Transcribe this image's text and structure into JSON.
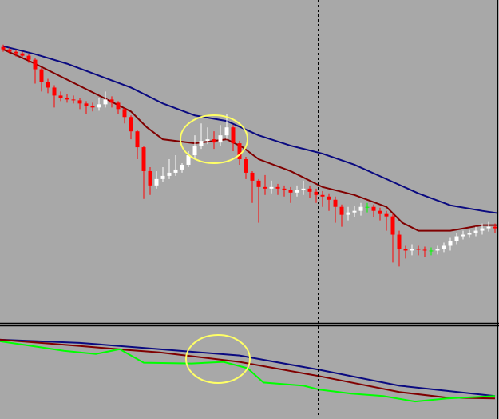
{
  "chart_data": [
    {
      "type": "candlestick",
      "xlim": [
        -0.5,
        77.5
      ],
      "ylim": [
        0,
        405
      ],
      "up_color": "#ffffff",
      "down_color": "#ff0000",
      "flat_color": "#00ff00",
      "x": [
        0,
        1,
        2,
        3,
        4,
        5,
        6,
        7,
        8,
        9,
        10,
        11,
        12,
        13,
        14,
        15,
        16,
        17,
        18,
        19,
        20,
        21,
        22,
        23,
        24,
        25,
        26,
        27,
        28,
        29,
        30,
        31,
        32,
        33,
        34,
        35,
        36,
        37,
        38,
        39,
        40,
        41,
        42,
        43,
        44,
        45,
        46,
        47,
        48,
        49,
        50,
        51,
        52,
        53,
        54,
        55,
        56,
        57,
        58,
        59,
        60,
        61,
        62,
        63,
        64,
        65,
        66,
        67,
        68,
        69,
        70,
        71,
        72,
        73,
        74,
        75,
        76,
        77
      ],
      "open": [
        346,
        343,
        340,
        338,
        335,
        330,
        318,
        302,
        295,
        285,
        282,
        280,
        279,
        275,
        272,
        270,
        274,
        280,
        276,
        268,
        258,
        240,
        220,
        190,
        172,
        180,
        184,
        188,
        192,
        198,
        210,
        222,
        228,
        230,
        226,
        235,
        245,
        225,
        205,
        188,
        178,
        170,
        168,
        170,
        168,
        166,
        163,
        166,
        168,
        164,
        160,
        158,
        154,
        145,
        135,
        138,
        140,
        145,
        145,
        140,
        136,
        133,
        110,
        92,
        90,
        92,
        91,
        90,
        90,
        92,
        96,
        102,
        108,
        110,
        112,
        115,
        118,
        120
      ],
      "high": [
        349,
        345,
        342,
        340,
        337,
        332,
        320,
        306,
        298,
        290,
        287,
        285,
        282,
        278,
        276,
        282,
        290,
        284,
        278,
        270,
        260,
        242,
        222,
        195,
        190,
        195,
        205,
        210,
        200,
        215,
        235,
        250,
        245,
        240,
        248,
        262,
        248,
        228,
        208,
        190,
        180,
        185,
        178,
        174,
        172,
        170,
        172,
        178,
        172,
        168,
        165,
        162,
        158,
        148,
        145,
        146,
        150,
        150,
        148,
        144,
        140,
        136,
        115,
        96,
        98,
        96,
        95,
        94,
        96,
        100,
        106,
        112,
        115,
        116,
        120,
        124,
        126,
        124
      ],
      "low": [
        340,
        337,
        334,
        331,
        326,
        300,
        290,
        288,
        270,
        278,
        276,
        275,
        268,
        262,
        265,
        266,
        270,
        270,
        262,
        250,
        230,
        205,
        155,
        160,
        168,
        176,
        180,
        184,
        188,
        195,
        205,
        218,
        224,
        218,
        222,
        230,
        215,
        198,
        180,
        150,
        125,
        160,
        162,
        160,
        158,
        150,
        158,
        160,
        156,
        150,
        145,
        140,
        125,
        120,
        128,
        132,
        134,
        138,
        132,
        128,
        115,
        75,
        70,
        80,
        84,
        84,
        82,
        84,
        85,
        88,
        90,
        98,
        104,
        106,
        108,
        110,
        114,
        112
      ],
      "close": [
        343,
        340,
        338,
        335,
        330,
        318,
        302,
        295,
        285,
        282,
        280,
        279,
        275,
        272,
        270,
        274,
        280,
        276,
        268,
        258,
        240,
        220,
        190,
        172,
        180,
        184,
        188,
        192,
        198,
        210,
        222,
        228,
        230,
        226,
        235,
        245,
        225,
        205,
        188,
        178,
        170,
        168,
        170,
        168,
        166,
        163,
        166,
        168,
        164,
        160,
        158,
        154,
        145,
        135,
        138,
        140,
        145,
        145,
        140,
        136,
        133,
        110,
        92,
        90,
        92,
        91,
        90,
        90,
        92,
        96,
        102,
        108,
        110,
        112,
        115,
        118,
        120,
        118
      ],
      "lines": [
        {
          "color": "#0a0a80",
          "x": [
            0,
            5,
            10,
            15,
            20,
            25,
            30,
            35,
            40,
            45,
            50,
            55,
            60,
            65,
            70,
            75,
            77.5
          ],
          "values": [
            347,
            337,
            325,
            310,
            295,
            275,
            260,
            253,
            235,
            222,
            212,
            198,
            180,
            162,
            147,
            140,
            137
          ]
        },
        {
          "color": "#800000",
          "x": [
            0,
            5,
            10,
            15,
            20,
            22.5,
            25,
            30,
            35,
            37.5,
            40,
            45,
            50,
            55,
            60,
            62.5,
            65,
            70,
            75,
            77.5
          ],
          "values": [
            343,
            325,
            305,
            285,
            265,
            245,
            230,
            225,
            230,
            220,
            205,
            190,
            170,
            160,
            145,
            125,
            115,
            115,
            122,
            122
          ]
        }
      ]
    },
    {
      "type": "line",
      "xlim": [
        -0.5,
        77.5
      ],
      "ylim": [
        0,
        112
      ],
      "series": [
        {
          "color": "#0a0a80",
          "x": [
            -0.5,
            12,
            24.5,
            37,
            49.5,
            62,
            77
          ],
          "values": [
            96,
            92,
            84,
            76,
            58,
            38,
            25
          ]
        },
        {
          "color": "#800000",
          "x": [
            -0.5,
            12,
            19.5,
            24.5,
            37,
            49.5,
            62,
            69.5,
            77
          ],
          "values": [
            96,
            88,
            83,
            80,
            68,
            50,
            30,
            23,
            22
          ]
        },
        {
          "color": "#00ff00",
          "x": [
            -0.5,
            4.5,
            9.5,
            14.5,
            18.25,
            22,
            29.5,
            34.5,
            38.25,
            40.75,
            47,
            49.5,
            54.5,
            59.5,
            64.5,
            69.5,
            74.5,
            77
          ],
          "values": [
            94,
            88,
            82,
            78,
            84,
            67,
            66,
            68,
            60,
            42,
            38,
            33,
            28,
            25,
            18,
            22,
            24,
            25
          ]
        }
      ]
    }
  ]
}
